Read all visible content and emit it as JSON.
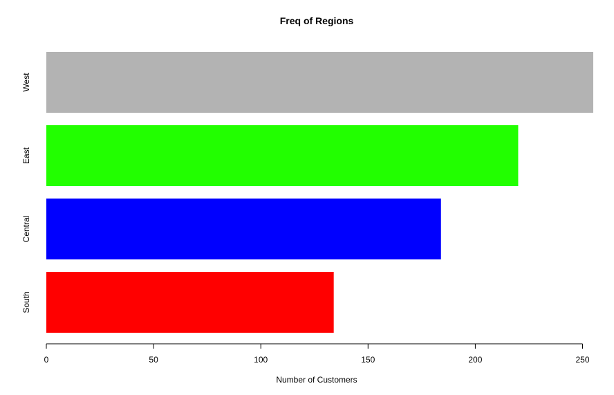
{
  "chart_data": {
    "type": "bar",
    "orientation": "horizontal",
    "title": "Freq of Regions",
    "xlabel": "Number of Customers",
    "ylabel": "",
    "categories": [
      "South",
      "Central",
      "East",
      "West"
    ],
    "values": [
      134,
      184,
      220,
      255
    ],
    "colors": [
      "#ff0000",
      "#0000ff",
      "#22ff00",
      "#b3b3b3"
    ],
    "xlim": [
      0,
      255
    ],
    "x_ticks": [
      "0",
      "50",
      "100",
      "150",
      "200",
      "250"
    ],
    "grid": false,
    "legend": "none"
  }
}
